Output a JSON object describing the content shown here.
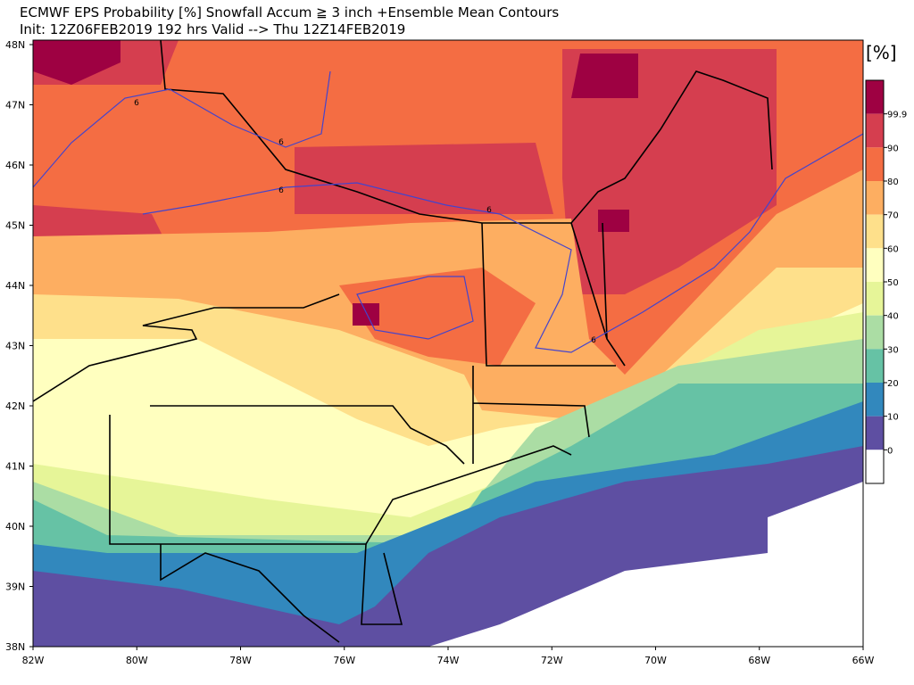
{
  "header": {
    "title": "ECMWF EPS Probability [%] Snowfall Accum ≧ 3 inch   +Ensemble Mean Contours",
    "subtitle": "Init: 12Z06FEB2019   192 hrs Valid --> Thu 12Z14FEB2019"
  },
  "map": {
    "lat_labels": [
      "48N",
      "47N",
      "46N",
      "45N",
      "44N",
      "43N",
      "42N",
      "41N",
      "40N",
      "39N",
      "38N"
    ],
    "lon_labels": [
      "82W",
      "80W",
      "78W",
      "76W",
      "74W",
      "72W",
      "70W",
      "68W",
      "66W"
    ],
    "contour_labels": [
      "6",
      "6",
      "6",
      "6",
      "6"
    ]
  },
  "colorbar": {
    "unit": "[%]",
    "labels": [
      "99.9",
      "90",
      "80",
      "70",
      "60",
      "50",
      "40",
      "30",
      "20",
      "10",
      "0"
    ]
  }
}
